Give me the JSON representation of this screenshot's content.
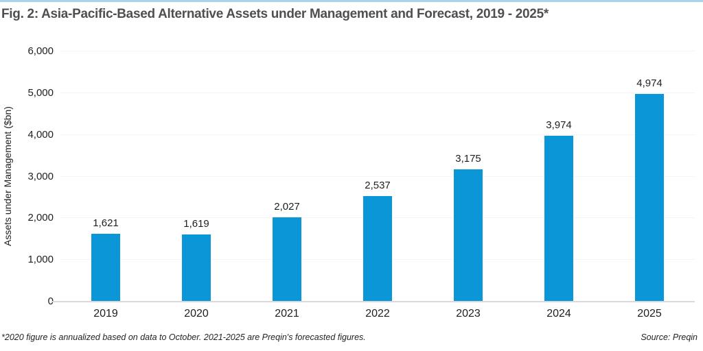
{
  "page": {
    "footnote": "*2020 figure is annualized based on data to October. 2021-2025 are Preqin's forecasted figures.",
    "source": "Source: Preqin"
  },
  "colors": {
    "bar": "#0a96d7",
    "top_rule": "#a9d2ec",
    "title_text": "#4f4f51",
    "gridline": "#f4f4f4",
    "axis_line": "#d9d9d9"
  },
  "chart_data": {
    "type": "bar",
    "title": "Fig. 2: Asia-Pacific-Based Alternative Assets under Management and Forecast, 2019 - 2025*",
    "categories": [
      "2019",
      "2020",
      "2021",
      "2022",
      "2023",
      "2024",
      "2025"
    ],
    "values": [
      1621,
      1619,
      2027,
      2537,
      3175,
      3974,
      4974
    ],
    "value_labels": [
      "1,621",
      "1,619",
      "2,027",
      "2,537",
      "3,175",
      "3,974",
      "4,974"
    ],
    "xlabel": "",
    "ylabel": "Assets under Management ($bn)",
    "ylim": [
      0,
      6000
    ],
    "ytick_step": 1000,
    "yticks": [
      "0",
      "1,000",
      "2,000",
      "3,000",
      "4,000",
      "5,000",
      "6,000"
    ],
    "grid": true,
    "legend_position": "none"
  }
}
